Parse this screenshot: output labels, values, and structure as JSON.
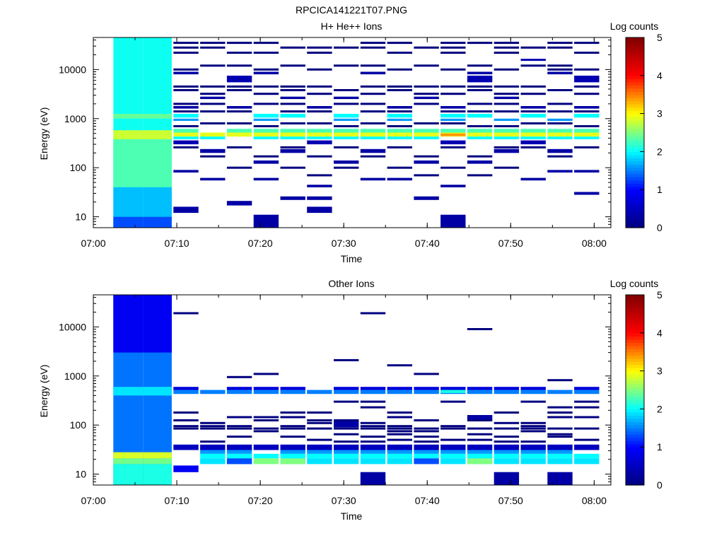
{
  "figure_title": "RPCICA141221T07.PNG",
  "colorscale": [
    "#00007f",
    "#0000ff",
    "#00ffff",
    "#ffff00",
    "#ff0000",
    "#7f0000"
  ],
  "chart_data": [
    {
      "type": "heatmap",
      "title": "H+ He++ Ions",
      "xlabel": "Time",
      "ylabel": "Energy (eV)",
      "colorbar_label": "Log counts",
      "colorbar_ticks": [
        "0",
        "1",
        "2",
        "3",
        "4",
        "5"
      ],
      "clim": [
        0,
        5
      ],
      "yscale": "log",
      "ylim": [
        6,
        45000
      ],
      "xlim": [
        "07:00",
        "08:02"
      ],
      "x_ticks": [
        "07:00",
        "07:10",
        "07:20",
        "07:30",
        "07:40",
        "07:50",
        "08:00"
      ],
      "y_ticks": [
        "10",
        "100",
        "1000",
        "10000"
      ],
      "time_bins_start": [
        "07:02.4",
        "07:06.0",
        "07:09.6",
        "07:12.8",
        "07:16.0",
        "07:19.2",
        "07:22.4",
        "07:25.6",
        "07:28.8",
        "07:32.0",
        "07:35.2",
        "07:38.4",
        "07:41.6",
        "07:44.8",
        "07:48.0",
        "07:51.2",
        "07:54.4",
        "07:57.6"
      ],
      "time_bins_end": [
        "07:06.0",
        "07:09.4",
        "07:12.6",
        "07:15.8",
        "07:19.0",
        "07:22.2",
        "07:25.4",
        "07:28.6",
        "07:31.8",
        "07:35.0",
        "07:38.2",
        "07:41.4",
        "07:44.6",
        "07:47.8",
        "07:51.0",
        "07:54.2",
        "07:57.4",
        "08:00.6"
      ],
      "bands": [
        {
          "elo": 6,
          "ehi": 45000,
          "level": 2.05,
          "cols": [
            0,
            1
          ]
        },
        {
          "elo": 6,
          "ehi": 10,
          "level": 1.3,
          "cols": [
            0,
            1
          ]
        },
        {
          "elo": 10,
          "ehi": 40,
          "level": 1.75,
          "cols": [
            0,
            1
          ]
        },
        {
          "elo": 40,
          "ehi": 400,
          "level": 2.3,
          "cols": [
            0,
            1
          ]
        },
        {
          "elo": 380,
          "ehi": 580,
          "level": 2.8,
          "cols": [
            0,
            1
          ]
        },
        {
          "elo": 1000,
          "ehi": 1250,
          "level": 2.4,
          "cols": [
            0,
            1
          ]
        },
        {
          "elo": 430,
          "ehi": 520,
          "level": 2.9,
          "cols": [
            2,
            3,
            4,
            5,
            6,
            7,
            8,
            9,
            10,
            11,
            12,
            13,
            14,
            15,
            16,
            17
          ]
        },
        {
          "elo": 520,
          "ehi": 620,
          "level": 2.3,
          "cols": [
            2,
            4,
            5,
            6,
            7,
            8,
            9,
            10,
            11,
            12,
            13,
            14,
            15,
            16,
            17
          ]
        },
        {
          "elo": 380,
          "ehi": 430,
          "level": 2.0,
          "cols": [
            2,
            3,
            5,
            6,
            7,
            8,
            9,
            10,
            11,
            13,
            14,
            15,
            16,
            17
          ]
        },
        {
          "elo": 1050,
          "ehi": 1250,
          "level": 2.0,
          "cols": [
            2,
            5,
            6,
            8,
            10,
            12,
            13,
            15,
            17
          ]
        },
        {
          "elo": 440,
          "ehi": 500,
          "level": 3.4,
          "cols": [
            12
          ]
        },
        {
          "elo": 900,
          "ehi": 1000,
          "level": 1.6,
          "cols": [
            2,
            5,
            8,
            10,
            12,
            14,
            16
          ]
        },
        {
          "elo": 15000,
          "ehi": 16500,
          "level": 0.4,
          "cols": [
            15
          ]
        },
        {
          "elo": 8000,
          "ehi": 9000,
          "level": 0.3,
          "cols": [
            2,
            5,
            9,
            13,
            16
          ]
        },
        {
          "elo": 5500,
          "ehi": 7500,
          "level": 0.4,
          "cols": [
            4,
            13,
            17
          ]
        },
        {
          "elo": 2500,
          "ehi": 2800,
          "level": 0.3,
          "cols": [
            3,
            6,
            8,
            11,
            14
          ]
        },
        {
          "elo": 1600,
          "ehi": 1800,
          "level": 0.3,
          "cols": [
            2,
            4,
            7,
            10,
            12,
            15,
            17
          ]
        },
        {
          "elo": 300,
          "ehi": 360,
          "level": 0.4,
          "cols": [
            2,
            7,
            12,
            15
          ]
        },
        {
          "elo": 200,
          "ehi": 240,
          "level": 0.3,
          "cols": [
            3,
            6,
            9,
            14,
            16
          ]
        },
        {
          "elo": 120,
          "ehi": 140,
          "level": 0.3,
          "cols": [
            5,
            8,
            11,
            13
          ]
        },
        {
          "elo": 80,
          "ehi": 90,
          "level": 0.3,
          "cols": [
            2,
            16,
            17
          ]
        },
        {
          "elo": 55,
          "ehi": 62,
          "level": 0.3,
          "cols": [
            3,
            5,
            9,
            10,
            15
          ]
        },
        {
          "elo": 40,
          "ehi": 45,
          "level": 0.3,
          "cols": [
            7,
            12
          ]
        },
        {
          "elo": 28,
          "ehi": 32,
          "level": 0.3,
          "cols": [
            17
          ]
        },
        {
          "elo": 22,
          "ehi": 26,
          "level": 0.3,
          "cols": [
            6,
            7,
            11
          ]
        },
        {
          "elo": 17,
          "ehi": 21,
          "level": 0.3,
          "cols": [
            4
          ]
        },
        {
          "elo": 12,
          "ehi": 16,
          "level": 0.3,
          "cols": [
            2,
            7
          ]
        },
        {
          "elo": 6,
          "ehi": 11,
          "level": 0.3,
          "cols": [
            5,
            12
          ]
        }
      ],
      "sparse_lines": [
        {
          "e": 35000,
          "cols": [
            2,
            3,
            4,
            5,
            9,
            10,
            12,
            13,
            14,
            16,
            17
          ]
        },
        {
          "e": 28000,
          "cols": [
            2,
            3,
            6,
            7,
            8,
            9,
            11,
            12,
            14,
            15,
            16
          ]
        },
        {
          "e": 22000,
          "cols": [
            2,
            4,
            5,
            7,
            10,
            12,
            14,
            17
          ]
        },
        {
          "e": 12000,
          "cols": [
            3,
            4,
            6,
            8,
            9,
            11,
            13,
            15,
            16
          ]
        },
        {
          "e": 10000,
          "cols": [
            2,
            5,
            7,
            10,
            12,
            14,
            16,
            17
          ]
        },
        {
          "e": 4500,
          "cols": [
            2,
            3,
            4,
            5,
            6,
            7,
            9,
            10,
            11,
            12,
            13,
            14,
            15,
            17
          ]
        },
        {
          "e": 3800,
          "cols": [
            2,
            4,
            6,
            8,
            10,
            13,
            16
          ]
        },
        {
          "e": 3200,
          "cols": [
            3,
            5,
            7,
            9,
            11,
            12,
            14,
            15,
            17
          ]
        },
        {
          "e": 2000,
          "cols": [
            2,
            3,
            5,
            6,
            8,
            9,
            11,
            13,
            14,
            16
          ]
        },
        {
          "e": 1400,
          "cols": [
            2,
            3,
            4,
            6,
            7,
            9,
            10,
            12,
            13,
            14,
            15,
            16,
            17
          ]
        },
        {
          "e": 800,
          "cols": [
            3,
            4,
            6,
            7,
            9,
            11,
            12,
            15,
            16
          ]
        },
        {
          "e": 700,
          "cols": [
            2,
            5,
            8,
            10,
            13,
            14,
            17
          ]
        },
        {
          "e": 260,
          "cols": [
            2,
            4,
            6,
            8,
            10,
            12,
            14,
            15,
            17
          ]
        },
        {
          "e": 170,
          "cols": [
            3,
            5,
            7,
            9,
            11,
            13,
            16
          ]
        },
        {
          "e": 100,
          "cols": [
            4,
            6,
            8,
            10,
            12,
            14
          ]
        },
        {
          "e": 70,
          "cols": [
            7,
            11,
            13
          ]
        }
      ]
    },
    {
      "type": "heatmap",
      "title": "Other Ions",
      "xlabel": "Time",
      "ylabel": "Energy (eV)",
      "colorbar_label": "Log counts",
      "colorbar_ticks": [
        "0",
        "1",
        "2",
        "3",
        "4",
        "5"
      ],
      "clim": [
        0,
        5
      ],
      "yscale": "log",
      "ylim": [
        6,
        45000
      ],
      "xlim": [
        "07:00",
        "08:02"
      ],
      "x_ticks": [
        "07:00",
        "07:10",
        "07:20",
        "07:30",
        "07:40",
        "07:50",
        "08:00"
      ],
      "y_ticks": [
        "10",
        "100",
        "1000",
        "10000"
      ],
      "time_bins_start": [
        "07:02.4",
        "07:06.0",
        "07:09.6",
        "07:12.8",
        "07:16.0",
        "07:19.2",
        "07:22.4",
        "07:25.6",
        "07:28.8",
        "07:32.0",
        "07:35.2",
        "07:38.4",
        "07:41.6",
        "07:44.8",
        "07:48.0",
        "07:51.2",
        "07:54.4",
        "07:57.6"
      ],
      "time_bins_end": [
        "07:06.0",
        "07:09.4",
        "07:12.6",
        "07:15.8",
        "07:19.0",
        "07:22.2",
        "07:25.4",
        "07:28.6",
        "07:31.8",
        "07:35.0",
        "07:38.2",
        "07:41.4",
        "07:44.6",
        "07:47.8",
        "07:51.0",
        "07:54.2",
        "07:57.4",
        "08:00.6"
      ],
      "bands": [
        {
          "elo": 6,
          "ehi": 45000,
          "level": 1.45,
          "cols": [
            0,
            1
          ]
        },
        {
          "elo": 3000,
          "ehi": 45000,
          "level": 0.9,
          "cols": [
            0,
            1
          ]
        },
        {
          "elo": 6,
          "ehi": 16,
          "level": 2.1,
          "cols": [
            0,
            1
          ]
        },
        {
          "elo": 16,
          "ehi": 21,
          "level": 2.45,
          "cols": [
            0,
            1
          ]
        },
        {
          "elo": 21,
          "ehi": 28,
          "level": 2.85,
          "cols": [
            0,
            1
          ]
        },
        {
          "elo": 400,
          "ehi": 600,
          "level": 1.9,
          "cols": [
            0,
            1
          ]
        },
        {
          "elo": 16,
          "ehi": 21,
          "level": 1.9,
          "cols": [
            3,
            4,
            6,
            7,
            8,
            9,
            10,
            12,
            13,
            14,
            15,
            16,
            17
          ]
        },
        {
          "elo": 16,
          "ehi": 21,
          "level": 2.5,
          "cols": [
            5,
            6,
            13
          ]
        },
        {
          "elo": 16,
          "ehi": 21,
          "level": 1.3,
          "cols": [
            4,
            11
          ]
        },
        {
          "elo": 21,
          "ehi": 26,
          "level": 2.0,
          "cols": [
            3,
            4,
            5,
            6,
            7,
            8,
            9,
            10,
            11,
            12,
            13,
            14,
            15,
            16,
            17
          ]
        },
        {
          "elo": 26,
          "ehi": 31,
          "level": 1.6,
          "cols": [
            3,
            4,
            6,
            7,
            8,
            9,
            10,
            11,
            12,
            13,
            14,
            15,
            16
          ]
        },
        {
          "elo": 31,
          "ehi": 40,
          "level": 0.5,
          "cols": [
            2,
            3,
            4,
            5,
            6,
            7,
            8,
            9,
            10,
            11,
            12,
            13,
            14,
            15,
            16,
            17
          ]
        },
        {
          "elo": 11,
          "ehi": 15,
          "level": 0.9,
          "cols": [
            2
          ]
        },
        {
          "elo": 430,
          "ehi": 520,
          "level": 1.5,
          "cols": [
            2,
            3,
            4,
            5,
            6,
            7,
            8,
            9,
            10,
            11,
            12,
            13,
            14,
            15,
            16,
            17
          ]
        },
        {
          "elo": 520,
          "ehi": 600,
          "level": 0.7,
          "cols": [
            2,
            4,
            5,
            6,
            8,
            9,
            10,
            11,
            12,
            13,
            14,
            15,
            17
          ]
        },
        {
          "elo": 450,
          "ehi": 520,
          "level": 2.1,
          "cols": [
            12
          ]
        },
        {
          "elo": 6,
          "ehi": 11,
          "level": 0.3,
          "cols": [
            9,
            14,
            16
          ]
        },
        {
          "elo": 130,
          "ehi": 160,
          "level": 0.3,
          "cols": [
            13
          ]
        },
        {
          "elo": 90,
          "ehi": 120,
          "level": 0.3,
          "cols": [
            8
          ]
        }
      ],
      "sparse_lines": [
        {
          "e": 19000,
          "cols": [
            2,
            9
          ]
        },
        {
          "e": 9000,
          "cols": [
            13
          ]
        },
        {
          "e": 2100,
          "cols": [
            8
          ]
        },
        {
          "e": 1650,
          "cols": [
            10
          ]
        },
        {
          "e": 1100,
          "cols": [
            5,
            11
          ]
        },
        {
          "e": 950,
          "cols": [
            4
          ]
        },
        {
          "e": 820,
          "cols": [
            16
          ]
        },
        {
          "e": 300,
          "cols": [
            8,
            9,
            12,
            15,
            17
          ]
        },
        {
          "e": 230,
          "cols": [
            9,
            16,
            17
          ]
        },
        {
          "e": 180,
          "cols": [
            2,
            6,
            7,
            10,
            14,
            16
          ]
        },
        {
          "e": 145,
          "cols": [
            4,
            5,
            6,
            10,
            16,
            17
          ]
        },
        {
          "e": 125,
          "cols": [
            2,
            5,
            7,
            8,
            11,
            13
          ]
        },
        {
          "e": 110,
          "cols": [
            3,
            7,
            9,
            14,
            15
          ]
        },
        {
          "e": 95,
          "cols": [
            2,
            3,
            4,
            6,
            9,
            10,
            12,
            15
          ]
        },
        {
          "e": 85,
          "cols": [
            2,
            3,
            4,
            5,
            6,
            7,
            8,
            9,
            10,
            11,
            12,
            13,
            14,
            15,
            16,
            17
          ]
        },
        {
          "e": 75,
          "cols": [
            5,
            10,
            11,
            15
          ]
        },
        {
          "e": 65,
          "cols": [
            8,
            10,
            13,
            16
          ]
        },
        {
          "e": 58,
          "cols": [
            4,
            6,
            9,
            11,
            14,
            16
          ]
        },
        {
          "e": 50,
          "cols": [
            7,
            10,
            12,
            13,
            17
          ]
        },
        {
          "e": 46,
          "cols": [
            3,
            8,
            9,
            11,
            14,
            15
          ]
        }
      ]
    }
  ]
}
